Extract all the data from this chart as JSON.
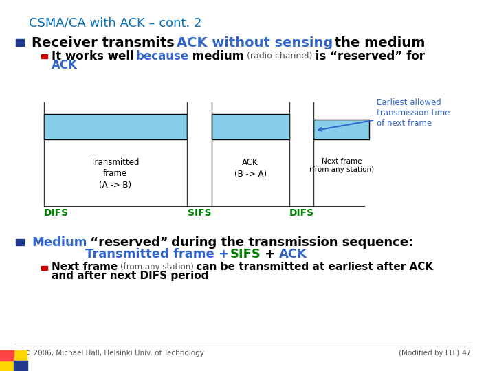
{
  "bg_color": "#FFFFFF",
  "slide_title": "CSMA/CA with ACK – cont. 2",
  "slide_title_color": "#0070C0",
  "slide_title_fontsize": 13,
  "box_fill_color": "#87CEEB",
  "box_edge_color": "#000000",
  "difs_color": "#008000",
  "sifs_color": "#008000",
  "note_color": "#3366CC",
  "footer_left": "© 2006, Michael Hall, Helsinki Univ. of Technology",
  "footer_right": "(Modified by LTL)",
  "footer_page": "47",
  "footer_color": "#555555"
}
